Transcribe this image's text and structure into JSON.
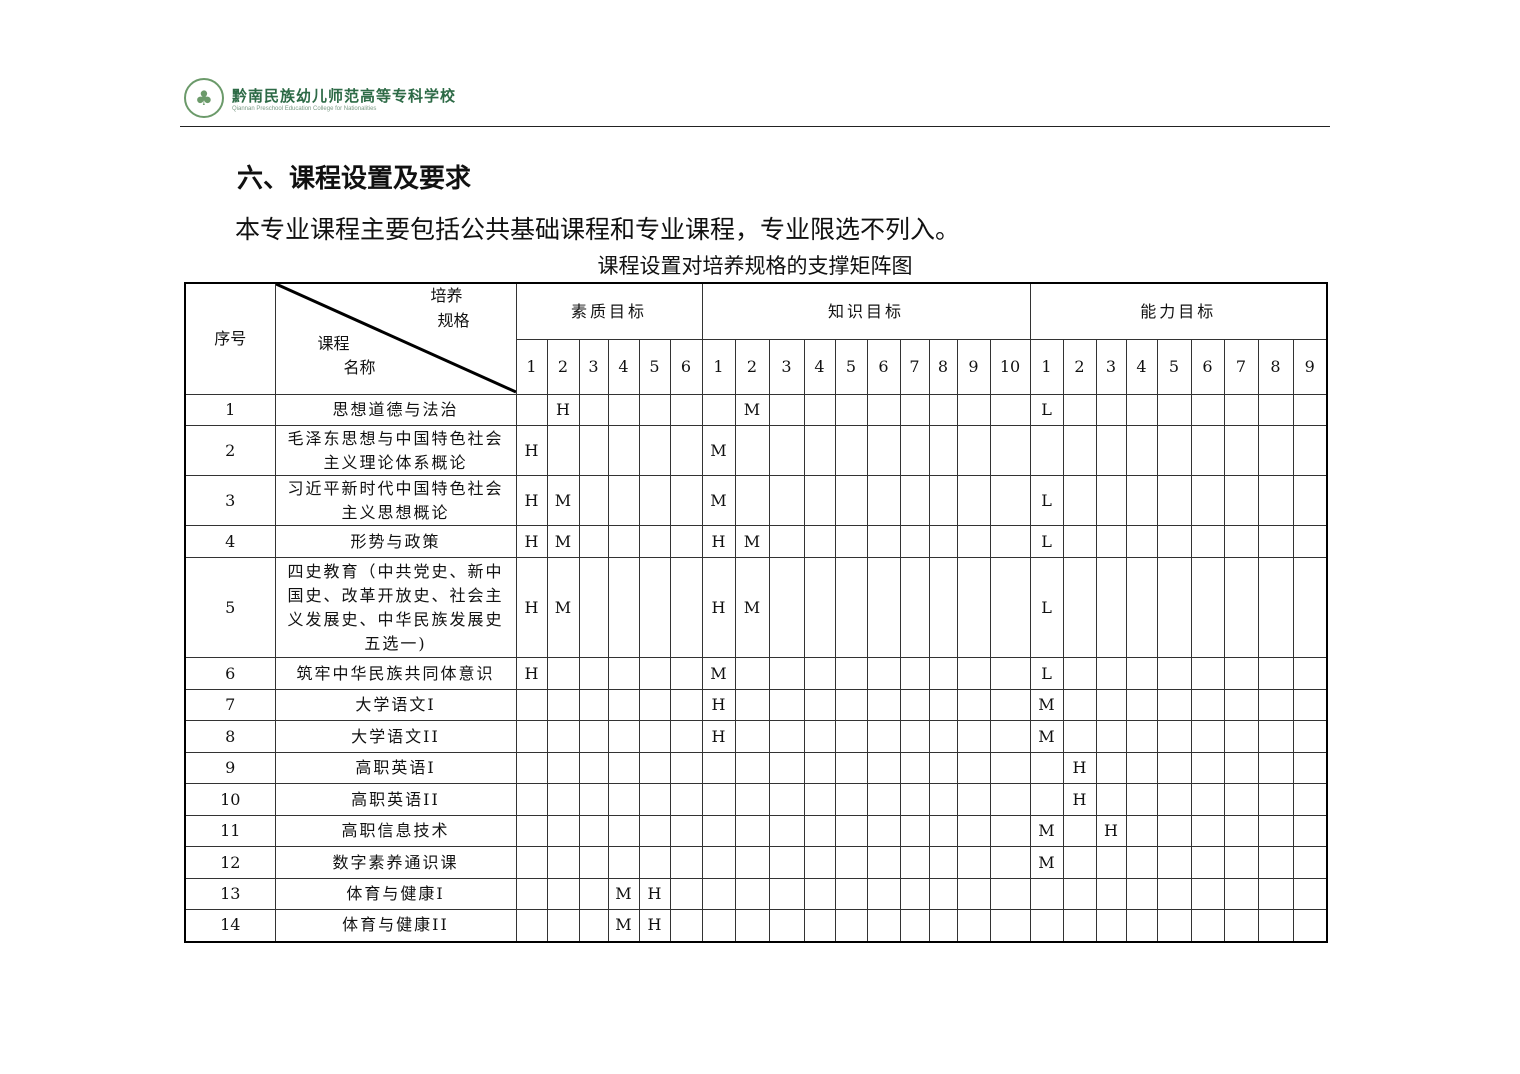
{
  "header": {
    "logo_cn": "黔南民族幼儿师范高等专科学校",
    "logo_en": "Qiannan Preschool Education College for Nationalities"
  },
  "section_title": "六、课程设置及要求",
  "intro": "本专业课程主要包括公共基础课程和专业课程，专业限选不列入。",
  "table": {
    "caption": "课程设置对培养规格的支撑矩阵图",
    "col_seq": "序号",
    "diag_top1": "培养",
    "diag_top2": "规格",
    "diag_bot1": "课程",
    "diag_bot2": "名称",
    "groups": [
      {
        "label": "素质目标",
        "count": 6
      },
      {
        "label": "知识目标",
        "count": 10
      },
      {
        "label": "能力目标",
        "count": 9
      }
    ],
    "rows": [
      {
        "seq": "1",
        "course": "思想道德与法治",
        "cells": [
          "",
          "H",
          "",
          "",
          "",
          "",
          "",
          "M",
          "",
          "",
          "",
          "",
          "",
          "",
          "",
          "",
          "L",
          "",
          "",
          "",
          "",
          "",
          "",
          "",
          ""
        ]
      },
      {
        "seq": "2",
        "course": "毛泽东思想与中国特色社会主义理论体系概论",
        "cells": [
          "H",
          "",
          "",
          "",
          "",
          "",
          "M",
          "",
          "",
          "",
          "",
          "",
          "",
          "",
          "",
          "",
          "",
          "",
          "",
          "",
          "",
          "",
          "",
          "",
          ""
        ]
      },
      {
        "seq": "3",
        "course": "习近平新时代中国特色社会主义思想概论",
        "cells": [
          "H",
          "M",
          "",
          "",
          "",
          "",
          "M",
          "",
          "",
          "",
          "",
          "",
          "",
          "",
          "",
          "",
          "L",
          "",
          "",
          "",
          "",
          "",
          "",
          "",
          ""
        ]
      },
      {
        "seq": "4",
        "course": "形势与政策",
        "cells": [
          "H",
          "M",
          "",
          "",
          "",
          "",
          "H",
          "M",
          "",
          "",
          "",
          "",
          "",
          "",
          "",
          "",
          "L",
          "",
          "",
          "",
          "",
          "",
          "",
          "",
          ""
        ]
      },
      {
        "seq": "5",
        "course": "四史教育（中共党史、新中国史、改革开放史、社会主义发展史、中华民族发展史五选一)",
        "cells": [
          "H",
          "M",
          "",
          "",
          "",
          "",
          "H",
          "M",
          "",
          "",
          "",
          "",
          "",
          "",
          "",
          "",
          "L",
          "",
          "",
          "",
          "",
          "",
          "",
          "",
          ""
        ]
      },
      {
        "seq": "6",
        "course": "筑牢中华民族共同体意识",
        "cells": [
          "H",
          "",
          "",
          "",
          "",
          "",
          "M",
          "",
          "",
          "",
          "",
          "",
          "",
          "",
          "",
          "",
          "L",
          "",
          "",
          "",
          "",
          "",
          "",
          "",
          ""
        ]
      },
      {
        "seq": "7",
        "course": "大学语文I",
        "cells": [
          "",
          "",
          "",
          "",
          "",
          "",
          "H",
          "",
          "",
          "",
          "",
          "",
          "",
          "",
          "",
          "",
          "M",
          "",
          "",
          "",
          "",
          "",
          "",
          "",
          ""
        ]
      },
      {
        "seq": "8",
        "course": "大学语文II",
        "cells": [
          "",
          "",
          "",
          "",
          "",
          "",
          "H",
          "",
          "",
          "",
          "",
          "",
          "",
          "",
          "",
          "",
          "M",
          "",
          "",
          "",
          "",
          "",
          "",
          "",
          ""
        ]
      },
      {
        "seq": "9",
        "course": "高职英语I",
        "cells": [
          "",
          "",
          "",
          "",
          "",
          "",
          "",
          "",
          "",
          "",
          "",
          "",
          "",
          "",
          "",
          "",
          "",
          "H",
          "",
          "",
          "",
          "",
          "",
          "",
          ""
        ]
      },
      {
        "seq": "10",
        "course": "高职英语II",
        "cells": [
          "",
          "",
          "",
          "",
          "",
          "",
          "",
          "",
          "",
          "",
          "",
          "",
          "",
          "",
          "",
          "",
          "",
          "H",
          "",
          "",
          "",
          "",
          "",
          "",
          ""
        ]
      },
      {
        "seq": "11",
        "course": "高职信息技术",
        "cells": [
          "",
          "",
          "",
          "",
          "",
          "",
          "",
          "",
          "",
          "",
          "",
          "",
          "",
          "",
          "",
          "",
          "M",
          "",
          "H",
          "",
          "",
          "",
          "",
          "",
          ""
        ]
      },
      {
        "seq": "12",
        "course": "数字素养通识课",
        "cells": [
          "",
          "",
          "",
          "",
          "",
          "",
          "",
          "",
          "",
          "",
          "",
          "",
          "",
          "",
          "",
          "",
          "M",
          "",
          "",
          "",
          "",
          "",
          "",
          "",
          ""
        ]
      },
      {
        "seq": "13",
        "course": "体育与健康I",
        "cells": [
          "",
          "",
          "",
          "M",
          "H",
          "",
          "",
          "",
          "",
          "",
          "",
          "",
          "",
          "",
          "",
          "",
          "",
          "",
          "",
          "",
          "",
          "",
          "",
          "",
          ""
        ]
      },
      {
        "seq": "14",
        "course": "体育与健康II",
        "cells": [
          "",
          "",
          "",
          "M",
          "H",
          "",
          "",
          "",
          "",
          "",
          "",
          "",
          "",
          "",
          "",
          "",
          "",
          "",
          "",
          "",
          "",
          "",
          "",
          "",
          ""
        ]
      }
    ]
  }
}
